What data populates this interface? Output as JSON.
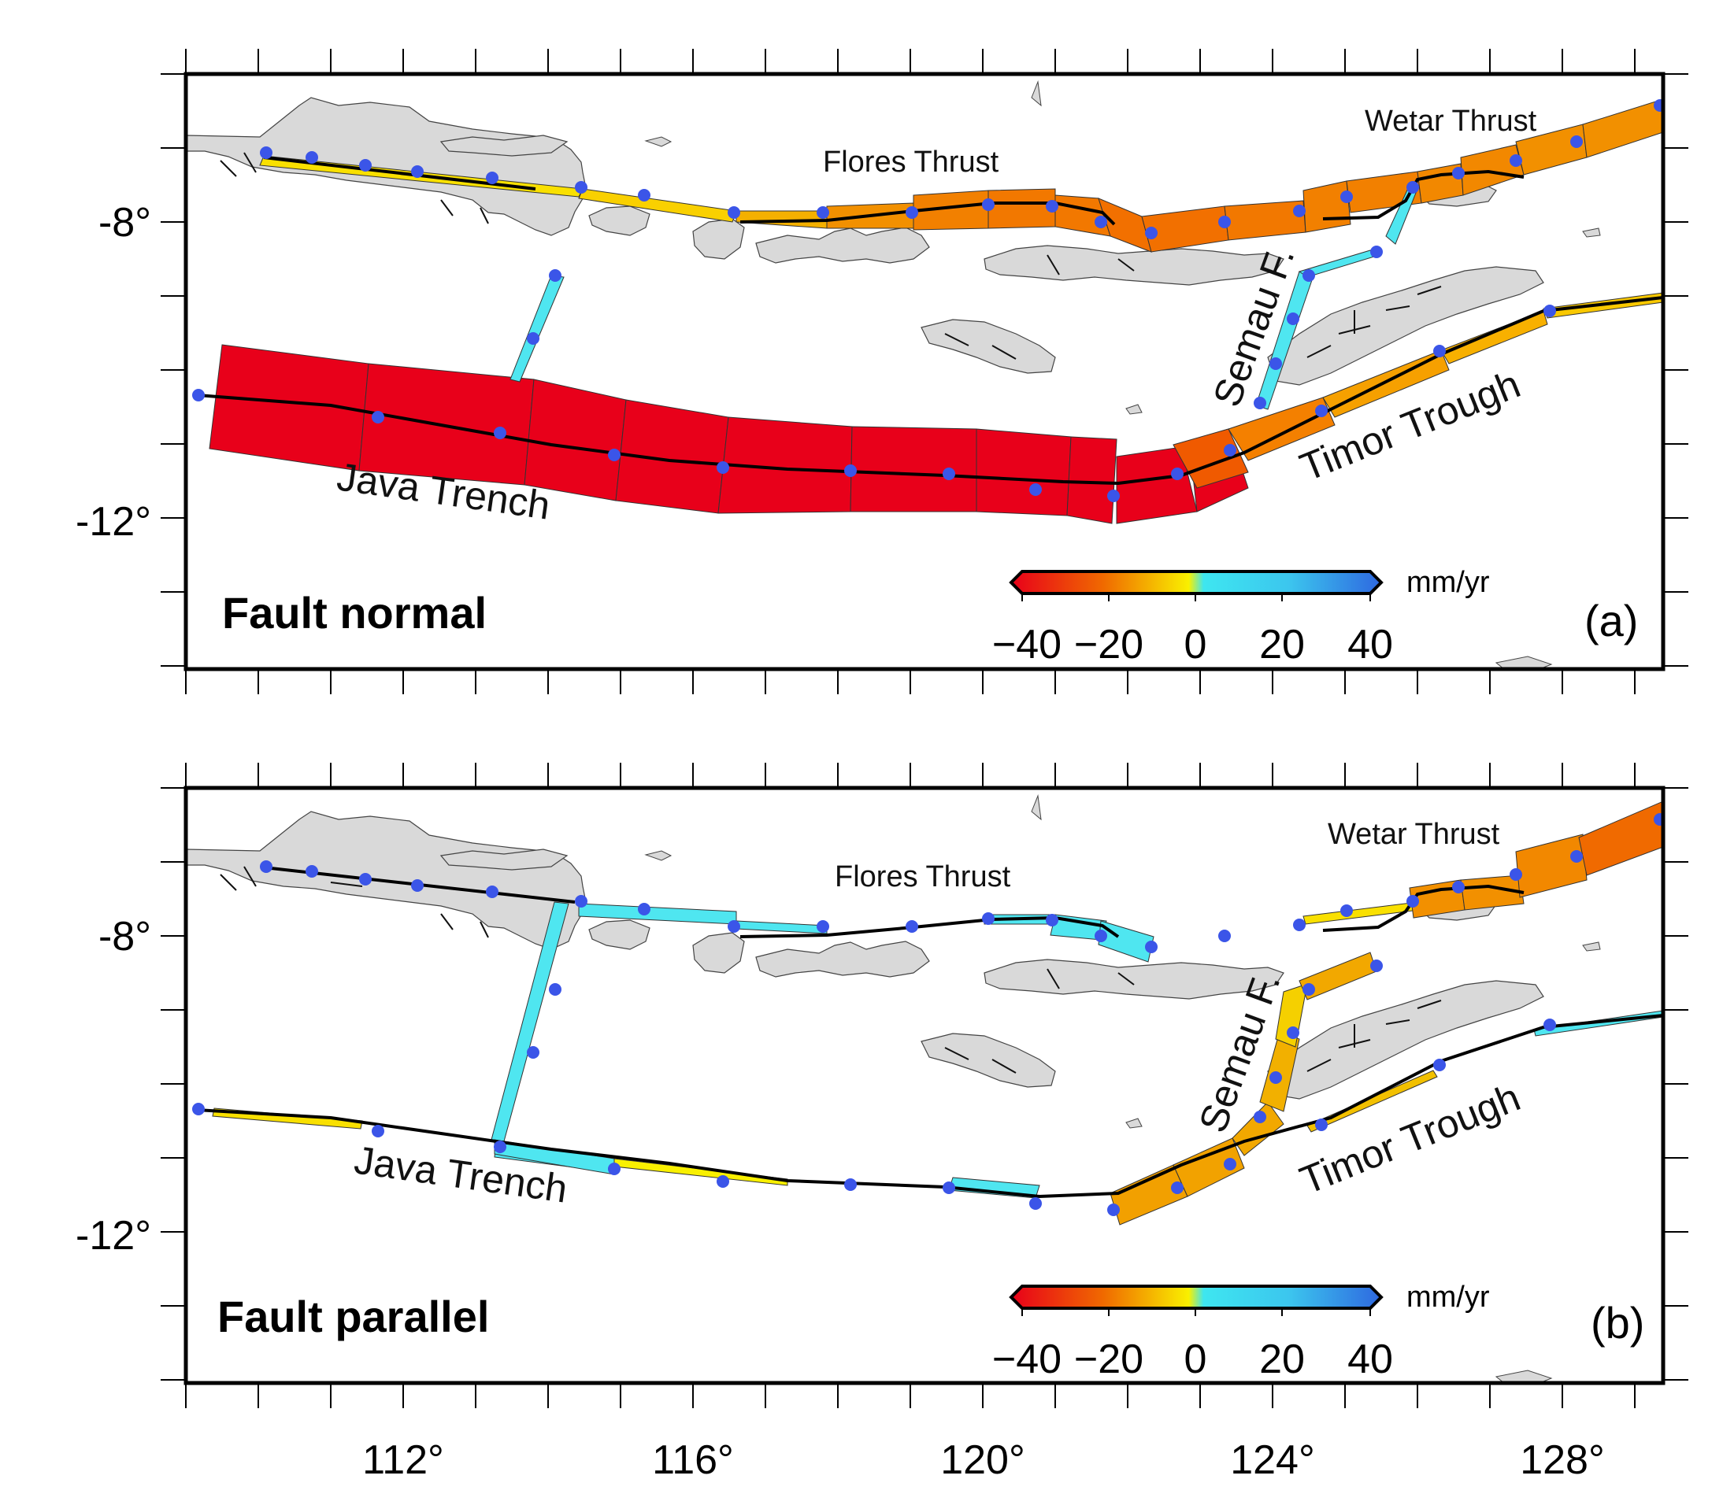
{
  "figure": {
    "x_ticks": [
      "112°",
      "116°",
      "120°",
      "124°",
      "128°"
    ],
    "y_ticks": [
      "-8°",
      "-12°"
    ],
    "colorbar": {
      "ticks": [
        "−40",
        "−20",
        "0",
        "20",
        "40"
      ],
      "unit": "mm/yr",
      "range": [
        -40,
        40
      ]
    },
    "labels": {
      "flores": "Flores Thrust",
      "wetar": "Wetar Thrust",
      "semau": "Semau F.",
      "java": "Java Trench",
      "timor": "Timor Trough"
    }
  },
  "panels": [
    {
      "title": "Fault normal",
      "letter": "(a)",
      "segments": [
        {
          "name": "Java Trench 1",
          "rate": -40
        },
        {
          "name": "Java Trench 2",
          "rate": -40
        },
        {
          "name": "Java Trench 3",
          "rate": -40
        },
        {
          "name": "Java Trench 4",
          "rate": -40
        },
        {
          "name": "Java Trench 5",
          "rate": -40
        },
        {
          "name": "Java Trench 6",
          "rate": -40
        },
        {
          "name": "Java Trench 7",
          "rate": -40
        },
        {
          "name": "Java Trench 8",
          "rate": -40
        },
        {
          "name": "Java Trench 9",
          "rate": -40
        },
        {
          "name": "Java Trench 10",
          "rate": -40
        },
        {
          "name": "Timor Trough 1",
          "rate": -38
        },
        {
          "name": "Timor Trough 2",
          "rate": -30
        },
        {
          "name": "Timor Trough 3",
          "rate": -22
        },
        {
          "name": "Timor Trough 4",
          "rate": -20
        },
        {
          "name": "Timor Trough 5",
          "rate": -15
        },
        {
          "name": "Flores Thrust W",
          "rate": -8
        },
        {
          "name": "Flores Thrust 1",
          "rate": -18
        },
        {
          "name": "Flores Thrust 2",
          "rate": -22
        },
        {
          "name": "Flores Thrust 3",
          "rate": -25
        },
        {
          "name": "Flores Thrust 4",
          "rate": -27
        },
        {
          "name": "Wetar Thrust 1",
          "rate": -27
        },
        {
          "name": "Wetar Thrust 2",
          "rate": -25
        },
        {
          "name": "Semau F. 1",
          "rate": 8
        },
        {
          "name": "Java-Bali link",
          "rate": 10
        }
      ]
    },
    {
      "title": "Fault parallel",
      "letter": "(b)",
      "segments": [
        {
          "name": "Java Trench W",
          "rate": -8
        },
        {
          "name": "Java Trench E",
          "rate": 6
        },
        {
          "name": "Java-Bali link",
          "rate": 8
        },
        {
          "name": "Flores Thrust W",
          "rate": 8
        },
        {
          "name": "Flores Thrust E",
          "rate": 10
        },
        {
          "name": "Timor Trough W",
          "rate": -20
        },
        {
          "name": "Timor Trough E",
          "rate": -5
        },
        {
          "name": "Semau F.",
          "rate": -15
        },
        {
          "name": "Semau F. N",
          "rate": -18
        },
        {
          "name": "Wetar Thrust 1",
          "rate": -22
        },
        {
          "name": "Wetar Thrust 2",
          "rate": -25
        }
      ]
    }
  ]
}
